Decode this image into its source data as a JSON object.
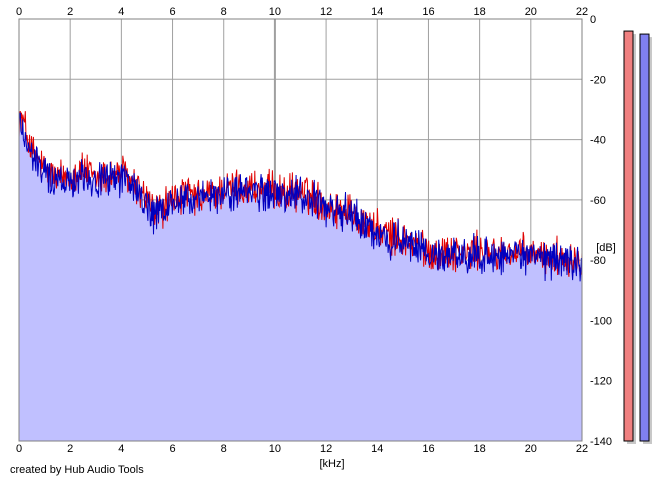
{
  "credit": "created by Hub Audio Tools",
  "chart_data": {
    "type": "area",
    "title": "",
    "xlabel": "[kHz]",
    "ylabel": "[dB]",
    "xlim": [
      0,
      22
    ],
    "ylim": [
      -140,
      0
    ],
    "x_ticks": [
      "0",
      "2",
      "4",
      "6",
      "8",
      "10",
      "12",
      "14",
      "16",
      "18",
      "20",
      "22"
    ],
    "y_ticks": [
      "0",
      "-20",
      "-40",
      "-60",
      "-80",
      "-100",
      "-120",
      "-140"
    ],
    "grid": true,
    "colors": {
      "series_red": "#e00000",
      "series_blue": "#0000c0",
      "area_fill": "#c0c0ff",
      "level_left": "#f08080",
      "level_right": "#8080f0"
    },
    "x_anchor": [
      0,
      0.2,
      0.5,
      1,
      1.5,
      2,
      2.5,
      3,
      3.5,
      4,
      4.5,
      5,
      5.3,
      5.6,
      6,
      6.5,
      7,
      7.5,
      8,
      8.5,
      9,
      9.5,
      10,
      10.5,
      11,
      11.5,
      12,
      12.5,
      13,
      13.5,
      14,
      14.5,
      15,
      15.5,
      16,
      16.5,
      17,
      17.5,
      18,
      18.5,
      19,
      19.5,
      20,
      20.5,
      21,
      21.5,
      22
    ],
    "y_anchor_red": [
      -32,
      -35,
      -44,
      -50,
      -53,
      -52,
      -50,
      -53,
      -52,
      -51,
      -55,
      -60,
      -64,
      -63,
      -60,
      -58,
      -60,
      -58,
      -57,
      -56,
      -56,
      -57,
      -57,
      -58,
      -57,
      -59,
      -62,
      -63,
      -64,
      -67,
      -70,
      -72,
      -73,
      -75,
      -77,
      -78,
      -77,
      -78,
      -77,
      -78,
      -77,
      -78,
      -78,
      -79,
      -79,
      -79,
      -80
    ],
    "y_anchor_blue": [
      -34,
      -38,
      -46,
      -51,
      -54,
      -53,
      -51,
      -54,
      -53,
      -52,
      -56,
      -62,
      -66,
      -64,
      -61,
      -59,
      -61,
      -59,
      -58,
      -57,
      -57,
      -58,
      -58,
      -59,
      -58,
      -60,
      -63,
      -64,
      -65,
      -68,
      -71,
      -73,
      -74,
      -76,
      -78,
      -79,
      -78,
      -79,
      -78,
      -79,
      -78,
      -79,
      -79,
      -80,
      -80,
      -80,
      -81
    ],
    "level_meter": {
      "left_db": -4,
      "right_db": -5
    }
  }
}
